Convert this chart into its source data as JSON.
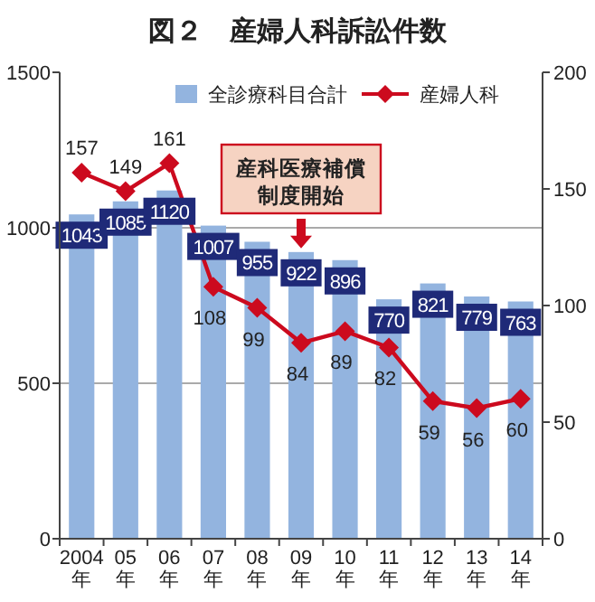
{
  "chart_data": {
    "type": "bar",
    "title": "図２　産婦人科訴訟件数",
    "categories": [
      "2004年",
      "05年",
      "06年",
      "07年",
      "08年",
      "09年",
      "10年",
      "11年",
      "12年",
      "13年",
      "14年"
    ],
    "series": [
      {
        "name": "全診療科目合計",
        "color": "#93b4df",
        "values": [
          1043,
          1085,
          1120,
          1007,
          955,
          922,
          896,
          770,
          821,
          779,
          763
        ]
      },
      {
        "name": "産婦人科",
        "type": "line",
        "axis": "y2",
        "color": "#cc0a1e",
        "marker": "diamond",
        "values": [
          157,
          149,
          161,
          108,
          99,
          84,
          89,
          82,
          59,
          56,
          60
        ]
      }
    ],
    "ylim": [
      0,
      1500
    ],
    "yticks": [
      0,
      500,
      1000,
      1500
    ],
    "y2lim": [
      0,
      200
    ],
    "y2ticks": [
      0,
      50,
      100,
      150,
      200
    ],
    "grid": "y",
    "legend": "top right",
    "data_labels": true,
    "annotations": [
      {
        "text": "産科医療補償制度開始",
        "x": "09年",
        "y": 922
      }
    ]
  }
}
